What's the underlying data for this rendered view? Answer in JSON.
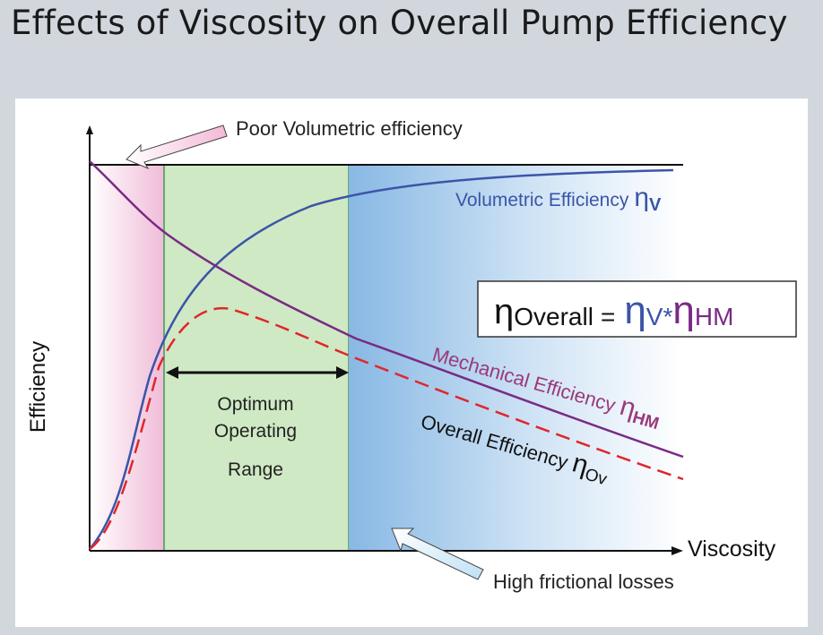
{
  "title": "Effects of Viscosity on Overall Pump Efficiency",
  "axes": {
    "y_label": "Efficiency",
    "x_label": "Viscosity"
  },
  "annotations": {
    "poor_volumetric": "Poor Volumetric efficiency",
    "high_frictional": "High frictional losses",
    "optimum_line1": "Optimum",
    "optimum_line2": "Operating",
    "optimum_line3": "Range"
  },
  "curves": {
    "volumetric": {
      "label": "Volumetric Efficiency",
      "symbol": "η",
      "subscript": "V",
      "color": "#3b55a8"
    },
    "mechanical": {
      "label": "Mechanical Efficiency",
      "symbol": "η",
      "subscript": "HM",
      "color": "#7a2a85"
    },
    "overall": {
      "label": "Overall Efficiency",
      "symbol": "η",
      "subscript": "Ov",
      "color": "#e0262b"
    }
  },
  "formula": {
    "eta": "η",
    "overall_sub": "Overall",
    "equals": "=",
    "v_sub": "V*",
    "hm_sub": "HM"
  },
  "colors": {
    "pink_region": "#f2c6dd",
    "green_region": "#cfe9c4",
    "blue_region": "#8fbde6",
    "axis": "#111111"
  }
}
